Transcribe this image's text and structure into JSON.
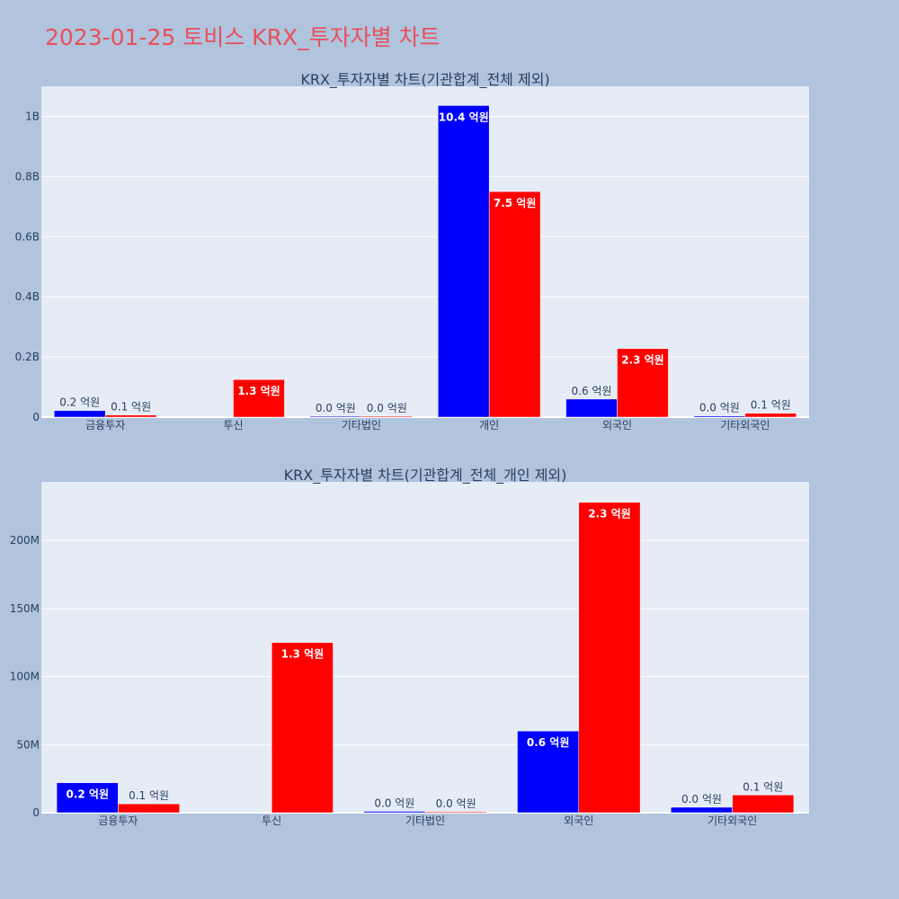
{
  "page_title": "2023-01-25 토비스 KRX_투자자별 차트",
  "colors": {
    "series_a": "#0000ff",
    "series_b": "#ff0000",
    "plot_bg": "#e5ecf6",
    "page_bg": "#b0c4de"
  },
  "chart_data": [
    {
      "type": "bar",
      "title": "KRX_투자자별 차트(기관합계_전체 제외)",
      "categories": [
        "금융투자",
        "투신",
        "기타법인",
        "개인",
        "외국인",
        "기타외국인"
      ],
      "ylim": [
        0,
        1100000000
      ],
      "ytick_values": [
        0,
        200000000,
        400000000,
        600000000,
        800000000,
        1000000000
      ],
      "ytick_labels": [
        "0",
        "0.2B",
        "0.4B",
        "0.6B",
        "0.8B",
        "1B"
      ],
      "grid": true,
      "series": [
        {
          "color": "#0000ff",
          "values": [
            22000000,
            null,
            3000000,
            1036000000,
            60000000,
            4000000
          ],
          "labels": [
            "0.2 억원",
            "",
            "0.0 억원",
            "10.4 억원",
            "0.6 억원",
            "0.0 억원"
          ]
        },
        {
          "color": "#ff0000",
          "values": [
            7000000,
            125000000,
            2000000,
            750000000,
            228000000,
            13000000
          ],
          "labels": [
            "0.1 억원",
            "1.3 억원",
            "0.0 억원",
            "7.5 억원",
            "2.3 억원",
            "0.1 억원"
          ]
        }
      ]
    },
    {
      "type": "bar",
      "title": "KRX_투자자별 차트(기관합계_전체_개인 제외)",
      "categories": [
        "금융투자",
        "투신",
        "기타법인",
        "외국인",
        "기타외국인"
      ],
      "ylim": [
        0,
        243000000
      ],
      "ytick_values": [
        0,
        50000000,
        100000000,
        150000000,
        200000000
      ],
      "ytick_labels": [
        "0",
        "50M",
        "100M",
        "150M",
        "200M"
      ],
      "grid": true,
      "series": [
        {
          "color": "#0000ff",
          "values": [
            22000000,
            null,
            1000000,
            60000000,
            4000000
          ],
          "labels": [
            "0.2 억원",
            "",
            "0.0 억원",
            "0.6 억원",
            "0.0 억원"
          ]
        },
        {
          "color": "#ff0000",
          "values": [
            6500000,
            125000000,
            500000,
            228000000,
            13000000
          ],
          "labels": [
            "0.1 억원",
            "1.3 억원",
            "0.0 억원",
            "2.3 억원",
            "0.1 억원"
          ]
        }
      ]
    }
  ]
}
